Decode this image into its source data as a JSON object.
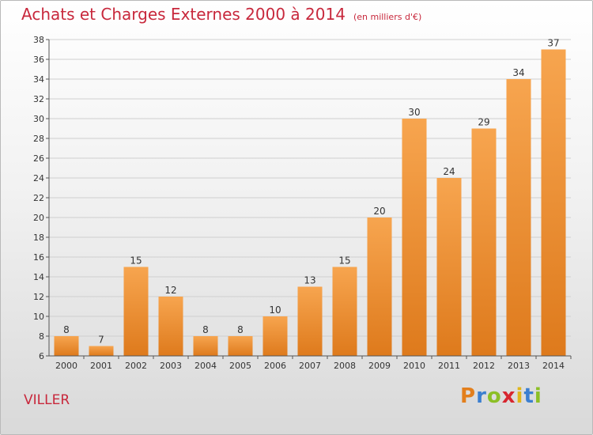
{
  "header": {
    "title": "Achats et Charges Externes 2000 à 2014",
    "unit": "(en milliers d'€)"
  },
  "footer": {
    "place": "VILLER",
    "logo": {
      "letters": [
        "P",
        "r",
        "o",
        "x",
        "i",
        "t",
        "i"
      ],
      "colors": [
        "#e37f1c",
        "#3b7fd0",
        "#8cbf26",
        "#d7262f",
        "#e0b61a",
        "#3b7fd0",
        "#8cbf26"
      ]
    }
  },
  "chart_data": {
    "type": "bar",
    "categories": [
      "2000",
      "2001",
      "2002",
      "2003",
      "2004",
      "2005",
      "2006",
      "2007",
      "2008",
      "2009",
      "2010",
      "2011",
      "2012",
      "2013",
      "2014"
    ],
    "values": [
      8,
      7,
      15,
      12,
      8,
      8,
      10,
      13,
      15,
      20,
      30,
      24,
      29,
      34,
      37
    ],
    "ylim": [
      6,
      38
    ],
    "yticks": [
      6,
      8,
      10,
      12,
      14,
      16,
      18,
      20,
      22,
      24,
      26,
      28,
      30,
      32,
      34,
      36,
      38
    ],
    "grid": true,
    "bar_color_top": "#f7a54f",
    "bar_color_bottom": "#de7a1c"
  }
}
